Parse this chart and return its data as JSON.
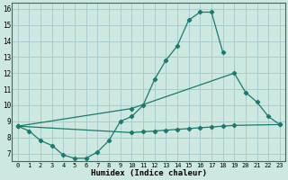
{
  "xlabel": "Humidex (Indice chaleur)",
  "bg_color": "#cce8e0",
  "grid_color": "#aacccc",
  "line_color": "#1a7a6e",
  "xlim": [
    -0.5,
    23.5
  ],
  "ylim": [
    6.5,
    16.4
  ],
  "xticks": [
    0,
    1,
    2,
    3,
    4,
    5,
    6,
    7,
    8,
    9,
    10,
    11,
    12,
    13,
    14,
    15,
    16,
    17,
    18,
    19,
    20,
    21,
    22,
    23
  ],
  "yticks": [
    7,
    8,
    9,
    10,
    11,
    12,
    13,
    14,
    15,
    16
  ],
  "line1_x": [
    0,
    1,
    2,
    3,
    4,
    5,
    6,
    7,
    8,
    9,
    10,
    11,
    12,
    13,
    14,
    15,
    16,
    17,
    18
  ],
  "line1_y": [
    8.7,
    8.4,
    7.8,
    7.5,
    6.9,
    6.7,
    6.7,
    7.1,
    7.8,
    9.0,
    9.3,
    10.0,
    11.6,
    12.8,
    13.7,
    15.3,
    15.8,
    15.8,
    13.3
  ],
  "line2_x": [
    0,
    10,
    19,
    20,
    21,
    22,
    23
  ],
  "line2_y": [
    8.7,
    9.8,
    12.0,
    10.8,
    10.2,
    9.3,
    8.8
  ],
  "line3_x": [
    0,
    10,
    11,
    12,
    13,
    14,
    15,
    16,
    17,
    18,
    19,
    23
  ],
  "line3_y": [
    8.7,
    8.3,
    8.35,
    8.4,
    8.45,
    8.5,
    8.55,
    8.6,
    8.65,
    8.7,
    8.75,
    8.8
  ]
}
